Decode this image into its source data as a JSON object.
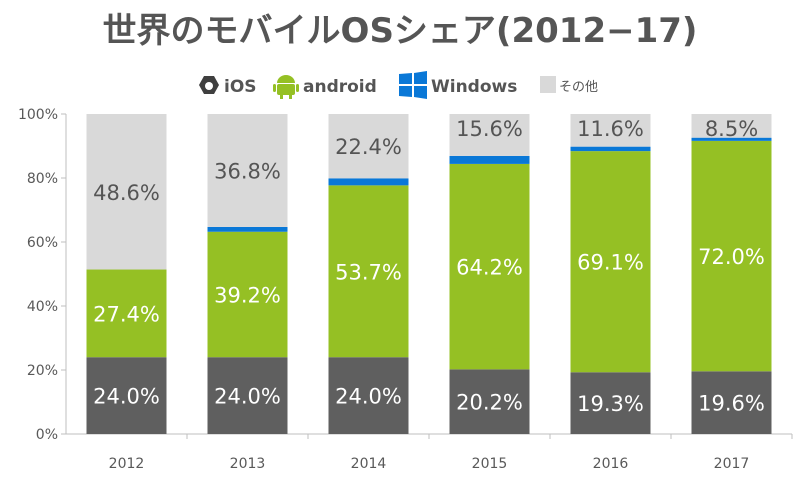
{
  "chart_data": {
    "type": "bar",
    "stacked": true,
    "title": "世界のモバイルOSシェア(2012−17)",
    "xlabel": "",
    "ylabel": "",
    "ylim": [
      0,
      100
    ],
    "yticks": [
      "0%",
      "20%",
      "40%",
      "60%",
      "80%",
      "100%"
    ],
    "legend_position": "top",
    "categories": [
      "2012",
      "2013",
      "2014",
      "2015",
      "2016",
      "2017"
    ],
    "series": [
      {
        "name": "iOS",
        "color": "#5f5f5f",
        "label_color": "#ffffff",
        "values": [
          24.0,
          24.0,
          24.0,
          20.2,
          19.3,
          19.6
        ],
        "labels": [
          "24.0%",
          "24.0%",
          "24.0%",
          "20.2%",
          "19.3%",
          "19.6%"
        ]
      },
      {
        "name": "android",
        "color": "#95c024",
        "label_color": "#ffffff",
        "values": [
          27.4,
          39.2,
          53.7,
          64.2,
          69.1,
          72.0
        ],
        "labels": [
          "27.4%",
          "39.2%",
          "53.7%",
          "64.2%",
          "69.1%",
          "72.0%"
        ]
      },
      {
        "name": "Windows",
        "color": "#0a78d7",
        "label_color": "#ffffff",
        "values": [
          0,
          1.5,
          2.2,
          2.5,
          1.4,
          1.0
        ],
        "labels": []
      },
      {
        "name": "その他",
        "color": "#d9d9d9",
        "label_color": "#555555",
        "values": [
          48.6,
          36.8,
          22.4,
          15.6,
          11.6,
          8.5
        ],
        "labels": [
          "48.6%",
          "36.8%",
          "22.4%",
          "15.6%",
          "11.6%",
          "8.5%"
        ]
      }
    ]
  }
}
